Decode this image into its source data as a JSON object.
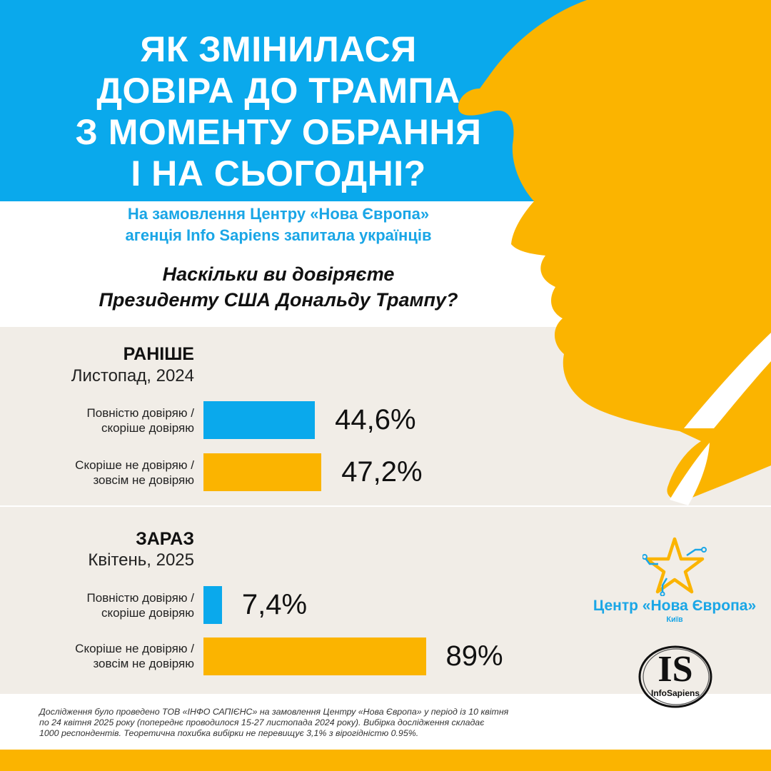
{
  "header": {
    "title_lines": [
      "ЯК ЗМІНИЛАСЯ",
      "ДОВІРА ДО ТРАМПА",
      "З МОМЕНТУ ОБРАННЯ",
      "І НА СЬОГОДНІ?"
    ],
    "subtitle_lines": [
      "На замовлення Центру «Нова Європа»",
      "агенція Info Sapiens запитала українців"
    ],
    "question_lines": [
      "Наскільки ви довіряєте",
      "Президенту США Дональду Трампу?"
    ]
  },
  "chart_data": {
    "type": "bar",
    "orientation": "horizontal",
    "unit": "%",
    "xlim": [
      0,
      100
    ],
    "grid": false,
    "colors": {
      "trust": "#0aa9ec",
      "distrust": "#fbb400"
    },
    "groups": [
      {
        "title": "РАНІШЕ",
        "date": "Листопад, 2024",
        "bars": [
          {
            "label_lines": [
              "Повністю довіряю /",
              "скоріше довіряю"
            ],
            "value": 44.6,
            "value_text": "44,6%",
            "color": "#0aa9ec"
          },
          {
            "label_lines": [
              "Скоріше не довіряю /",
              "зовсім не довіряю"
            ],
            "value": 47.2,
            "value_text": "47,2%",
            "color": "#fbb400"
          }
        ]
      },
      {
        "title": "ЗАРАЗ",
        "date": "Квітень, 2025",
        "bars": [
          {
            "label_lines": [
              "Повністю довіряю /",
              "скоріше довіряю"
            ],
            "value": 7.4,
            "value_text": "7,4%",
            "color": "#0aa9ec"
          },
          {
            "label_lines": [
              "Скоріше не довіряю /",
              "зовсім не довіряю"
            ],
            "value": 89,
            "value_text": "89%",
            "color": "#fbb400"
          }
        ]
      }
    ]
  },
  "logos": {
    "cne_name": "Центр «Нова Європа»",
    "cne_city": "Київ",
    "is_mark": "IS",
    "is_name": "InfoSapiens"
  },
  "footnote": {
    "lines": [
      "Дослідження було проведено ТОВ «ІНФО САПІЄНС» на замовлення  Центру «Нова Європа»  у період із 10 квітня",
      "по 24 квітня 2025 року  (попереднє проводилося 15-27 листопада 2024 року). Вибірка дослідження складає",
      "1000 респондентів. Теоретична похибка вибірки не перевищує 3,1% з вірогідністю 0.95%."
    ]
  },
  "theme": {
    "blue": "#0aa9ec",
    "yellow": "#fbb400",
    "band": "#f1ede7"
  }
}
